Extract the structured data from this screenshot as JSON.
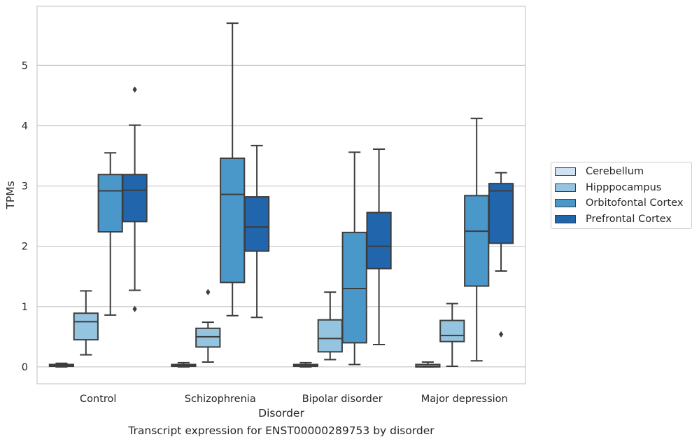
{
  "chart_data": {
    "type": "box",
    "xlabel": "Disorder",
    "ylabel": "TPMs",
    "caption": "Transcript expression for ENST00000289753 by disorder",
    "ylim": [
      -0.28,
      5.98
    ],
    "yticks": [
      0,
      1,
      2,
      3,
      4,
      5
    ],
    "grid": "horizontal",
    "legend_position": "right",
    "categories": [
      "Control",
      "Schizophrenia",
      "Bipolar disorder",
      "Major depression"
    ],
    "series": [
      {
        "name": "Cerebellum",
        "color": "#d0e1f2",
        "boxes": [
          {
            "whislo": 0.0,
            "q1": 0.01,
            "med": 0.02,
            "q3": 0.04,
            "whishi": 0.06,
            "fliers": []
          },
          {
            "whislo": 0.0,
            "q1": 0.01,
            "med": 0.02,
            "q3": 0.04,
            "whishi": 0.07,
            "fliers": []
          },
          {
            "whislo": 0.0,
            "q1": 0.01,
            "med": 0.02,
            "q3": 0.04,
            "whishi": 0.07,
            "fliers": []
          },
          {
            "whislo": 0.0,
            "q1": 0.0,
            "med": 0.01,
            "q3": 0.04,
            "whishi": 0.08,
            "fliers": []
          }
        ]
      },
      {
        "name": "Hipppocampus",
        "color": "#94c4df",
        "boxes": [
          {
            "whislo": 0.2,
            "q1": 0.45,
            "med": 0.75,
            "q3": 0.89,
            "whishi": 1.26,
            "fliers": []
          },
          {
            "whislo": 0.08,
            "q1": 0.33,
            "med": 0.5,
            "q3": 0.64,
            "whishi": 0.74,
            "fliers": [
              1.24
            ]
          },
          {
            "whislo": 0.12,
            "q1": 0.25,
            "med": 0.47,
            "q3": 0.78,
            "whishi": 1.24,
            "fliers": []
          },
          {
            "whislo": 0.01,
            "q1": 0.42,
            "med": 0.52,
            "q3": 0.77,
            "whishi": 1.05,
            "fliers": []
          }
        ]
      },
      {
        "name": "Orbitofontal Cortex",
        "color": "#4a98c9",
        "boxes": [
          {
            "whislo": 0.86,
            "q1": 2.24,
            "med": 2.92,
            "q3": 3.19,
            "whishi": 3.55,
            "fliers": []
          },
          {
            "whislo": 0.85,
            "q1": 1.4,
            "med": 2.86,
            "q3": 3.46,
            "whishi": 5.7,
            "fliers": []
          },
          {
            "whislo": 0.04,
            "q1": 0.4,
            "med": 1.3,
            "q3": 2.23,
            "whishi": 3.56,
            "fliers": []
          },
          {
            "whislo": 0.1,
            "q1": 1.34,
            "med": 2.25,
            "q3": 2.84,
            "whishi": 4.12,
            "fliers": []
          }
        ]
      },
      {
        "name": "Prefrontal Cortex",
        "color": "#2166ac",
        "boxes": [
          {
            "whislo": 1.27,
            "q1": 2.41,
            "med": 2.93,
            "q3": 3.19,
            "whishi": 4.01,
            "fliers": [
              0.96,
              4.6
            ]
          },
          {
            "whislo": 0.82,
            "q1": 1.92,
            "med": 2.32,
            "q3": 2.82,
            "whishi": 3.67,
            "fliers": []
          },
          {
            "whislo": 0.37,
            "q1": 1.63,
            "med": 2.0,
            "q3": 2.56,
            "whishi": 3.61,
            "fliers": []
          },
          {
            "whislo": 1.59,
            "q1": 2.05,
            "med": 2.92,
            "q3": 3.04,
            "whishi": 3.22,
            "fliers": [
              0.54
            ]
          }
        ]
      }
    ]
  }
}
